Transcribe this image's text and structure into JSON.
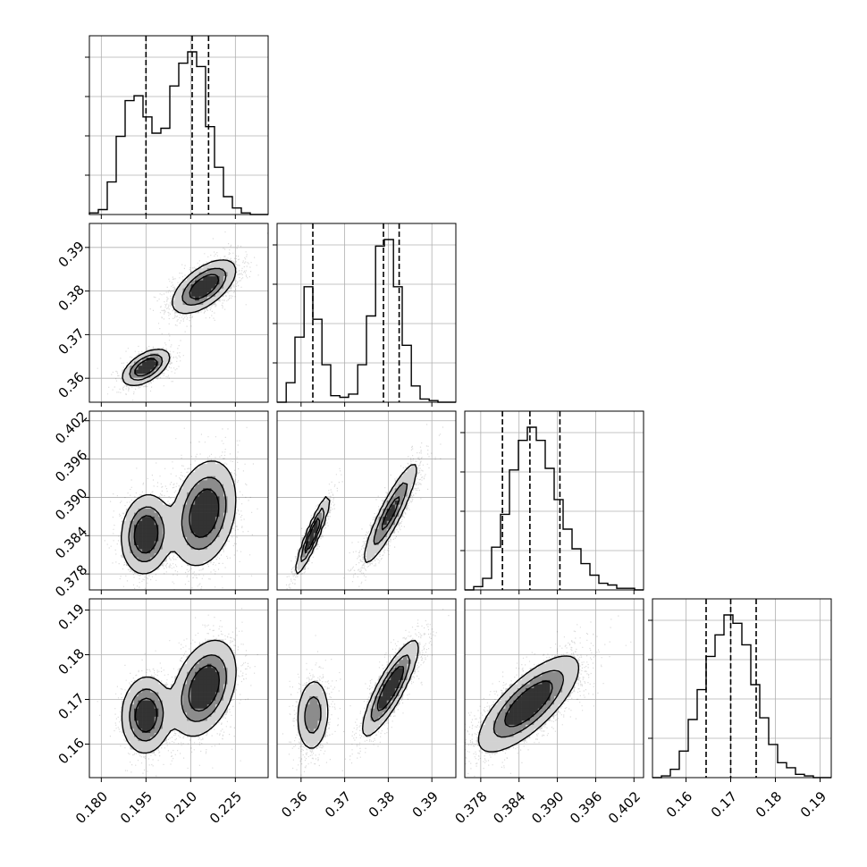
{
  "chart_data": {
    "type": "corner",
    "parameters": [
      {
        "ticks": [
          "0.180",
          "0.195",
          "0.210",
          "0.225"
        ],
        "tick_values": [
          0.18,
          0.195,
          0.21,
          0.225
        ],
        "range": [
          0.176,
          0.236
        ]
      },
      {
        "ticks": [
          "0.36",
          "0.37",
          "0.38",
          "0.39"
        ],
        "tick_values": [
          0.36,
          0.37,
          0.38,
          0.39
        ],
        "range": [
          0.3545,
          0.3955
        ]
      },
      {
        "ticks": [
          "0.378",
          "0.384",
          "0.390",
          "0.396",
          "0.402"
        ],
        "tick_values": [
          0.378,
          0.384,
          0.39,
          0.396,
          0.402
        ],
        "range": [
          0.3755,
          0.4035
        ]
      },
      {
        "ticks": [
          "0.16",
          "0.17",
          "0.18",
          "0.19"
        ],
        "tick_values": [
          0.16,
          0.17,
          0.18,
          0.19
        ],
        "range": [
          0.1525,
          0.1925
        ]
      }
    ],
    "histograms": [
      {
        "bin_edges": [
          0.176,
          0.179,
          0.182,
          0.185,
          0.188,
          0.191,
          0.194,
          0.197,
          0.2,
          0.203,
          0.206,
          0.209,
          0.212,
          0.215,
          0.218,
          0.221,
          0.224,
          0.227,
          0.23,
          0.233,
          0.236
        ],
        "counts": [
          0.01,
          0.03,
          0.2,
          0.48,
          0.7,
          0.73,
          0.6,
          0.5,
          0.53,
          0.79,
          0.93,
          1.0,
          0.91,
          0.54,
          0.29,
          0.11,
          0.04,
          0.01,
          0.0,
          0.0
        ],
        "quantiles": [
          0.195,
          0.2105,
          0.216
        ]
      },
      {
        "bin_edges": [
          0.3545,
          0.3566,
          0.3586,
          0.3607,
          0.3627,
          0.3648,
          0.3668,
          0.3689,
          0.3709,
          0.373,
          0.375,
          0.3771,
          0.3791,
          0.3812,
          0.3832,
          0.3853,
          0.3873,
          0.3894,
          0.3914,
          0.3935,
          0.3955
        ],
        "counts": [
          0.0,
          0.12,
          0.4,
          0.71,
          0.51,
          0.23,
          0.04,
          0.03,
          0.05,
          0.23,
          0.53,
          0.96,
          1.0,
          0.71,
          0.35,
          0.1,
          0.02,
          0.01,
          0.0,
          0.0
        ],
        "quantiles": [
          0.3627,
          0.3789,
          0.3825
        ]
      },
      {
        "bin_edges": [
          0.3755,
          0.3769,
          0.3783,
          0.3797,
          0.3811,
          0.3825,
          0.3839,
          0.3853,
          0.3867,
          0.3881,
          0.3895,
          0.3909,
          0.3923,
          0.3937,
          0.3951,
          0.3965,
          0.3979,
          0.3993,
          0.4007,
          0.4021,
          0.4035
        ],
        "counts": [
          0.0,
          0.02,
          0.07,
          0.26,
          0.46,
          0.73,
          0.91,
          0.99,
          0.91,
          0.74,
          0.55,
          0.37,
          0.25,
          0.16,
          0.09,
          0.04,
          0.03,
          0.01,
          0.01,
          0.0
        ],
        "quantiles": [
          0.3814,
          0.3857,
          0.3904
        ]
      },
      {
        "bin_edges": [
          0.1525,
          0.1545,
          0.1565,
          0.1585,
          0.1605,
          0.1625,
          0.1645,
          0.1665,
          0.1685,
          0.1705,
          0.1725,
          0.1745,
          0.1765,
          0.1785,
          0.1805,
          0.1825,
          0.1845,
          0.1865,
          0.1885,
          0.1905,
          0.1925
        ],
        "counts": [
          0.0,
          0.01,
          0.05,
          0.16,
          0.35,
          0.53,
          0.73,
          0.86,
          0.98,
          0.93,
          0.8,
          0.56,
          0.36,
          0.2,
          0.09,
          0.06,
          0.02,
          0.01,
          0.0,
          0.0
        ],
        "quantiles": [
          0.1645,
          0.17,
          0.1757
        ]
      }
    ],
    "pair_modes": [
      {
        "x": 0,
        "y": 1,
        "modes": [
          {
            "mean": [
              0.195,
              0.3625
            ],
            "sd": [
              0.0038,
              0.002
            ],
            "r": 0.55,
            "w": 0.35
          },
          {
            "mean": [
              0.2145,
              0.381
            ],
            "sd": [
              0.0052,
              0.003
            ],
            "r": 0.6,
            "w": 0.65
          }
        ]
      },
      {
        "x": 0,
        "y": 2,
        "modes": [
          {
            "mean": [
              0.195,
              0.3842
            ],
            "sd": [
              0.004,
              0.003
            ],
            "r": 0.1,
            "w": 0.38
          },
          {
            "mean": [
              0.2145,
              0.3875
            ],
            "sd": [
              0.0052,
              0.004
            ],
            "r": 0.25,
            "w": 0.62
          }
        ]
      },
      {
        "x": 1,
        "y": 2,
        "modes": [
          {
            "mean": [
              0.3627,
              0.3842
            ],
            "sd": [
              0.0019,
              0.003
            ],
            "r": 0.92,
            "w": 0.35
          },
          {
            "mean": [
              0.3805,
              0.3875
            ],
            "sd": [
              0.0031,
              0.004
            ],
            "r": 0.9,
            "w": 0.65
          }
        ]
      },
      {
        "x": 0,
        "y": 3,
        "modes": [
          {
            "mean": [
              0.195,
              0.1665
            ],
            "sd": [
              0.004,
              0.0042
            ],
            "r": 0.05,
            "w": 0.38
          },
          {
            "mean": [
              0.2145,
              0.1725
            ],
            "sd": [
              0.0052,
              0.0052
            ],
            "r": 0.35,
            "w": 0.62
          }
        ]
      },
      {
        "x": 1,
        "y": 3,
        "modes": [
          {
            "mean": [
              0.3627,
              0.1665
            ],
            "sd": [
              0.0019,
              0.0042
            ],
            "r": 0.1,
            "w": 0.35
          },
          {
            "mean": [
              0.3805,
              0.1725
            ],
            "sd": [
              0.0031,
              0.0052
            ],
            "r": 0.85,
            "w": 0.65
          }
        ]
      },
      {
        "x": 2,
        "y": 3,
        "modes": [
          {
            "mean": [
              0.3855,
              0.169
            ],
            "sd": [
              0.0038,
              0.0052
            ],
            "r": 0.75,
            "w": 1.0
          }
        ]
      }
    ],
    "colors": {
      "axis": "#000000",
      "grid": "#b0b0b0",
      "line": "#000000",
      "points": "#000000"
    },
    "grid": true
  }
}
